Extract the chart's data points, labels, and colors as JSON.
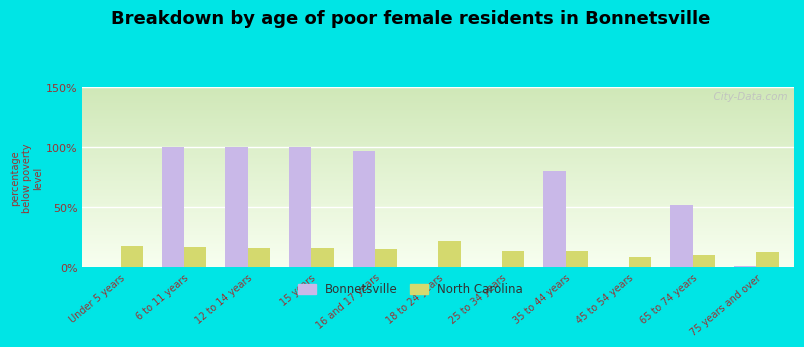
{
  "title": "Breakdown by age of poor female residents in Bonnetsville",
  "categories": [
    "Under 5 years",
    "6 to 11 years",
    "12 to 14 years",
    "15 years",
    "16 and 17 years",
    "18 to 24 years",
    "25 to 34 years",
    "35 to 44 years",
    "45 to 54 years",
    "65 to 74 years",
    "75 years and over"
  ],
  "bonnetsville_values": [
    0,
    100,
    100,
    100,
    97,
    0,
    0,
    80,
    0,
    52,
    1
  ],
  "nc_values": [
    18,
    17,
    16,
    16,
    15,
    22,
    14,
    14,
    9,
    10,
    13
  ],
  "bonnetsville_color": "#c9b8e8",
  "nc_color": "#d4d96e",
  "ylabel": "percentage\nbelow poverty\nlevel",
  "ylim": [
    0,
    150
  ],
  "yticks": [
    0,
    50,
    100,
    150
  ],
  "ytick_labels": [
    "0%",
    "50%",
    "100%",
    "150%"
  ],
  "bg_top_color": "#f0f8e8",
  "bg_bottom_color": "#d8ecc0",
  "outer_background": "#00e5e5",
  "grid_color": "#ffffff",
  "title_fontsize": 13,
  "tick_label_color": "#993333",
  "ylabel_color": "#993333",
  "watermark": "  City-Data.com"
}
